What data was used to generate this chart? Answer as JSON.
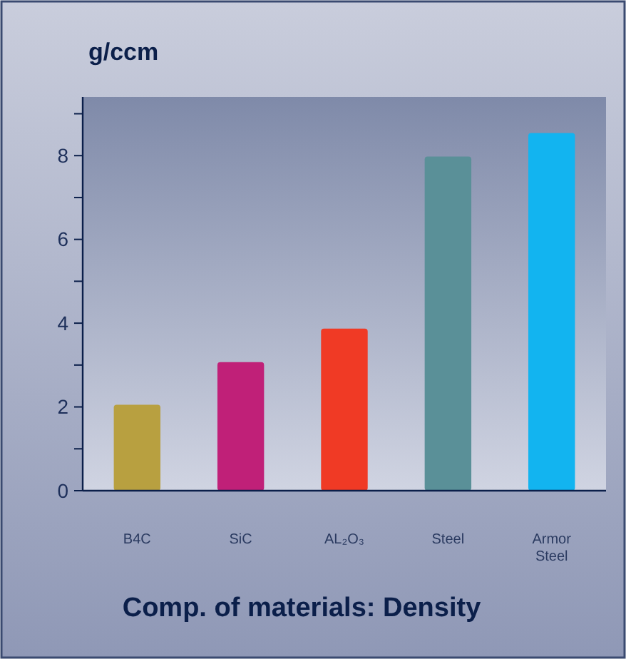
{
  "chart_data": {
    "type": "bar",
    "title": "Comp. of materials: Density",
    "ylabel": "g/ccm",
    "categories": [
      "B4C",
      "SiC",
      "AL₂O₃",
      "Steel",
      "Armor Steel"
    ],
    "values": [
      2.05,
      3.07,
      3.87,
      7.98,
      8.54
    ],
    "colors": [
      "#b8a040",
      "#c02078",
      "#f03a25",
      "#5a9098",
      "#12b4f0"
    ],
    "ylim": [
      0,
      9.4
    ],
    "yticks": [
      0,
      {
        "value": 1,
        "label": null
      },
      2,
      {
        "value": 3,
        "label": null
      },
      4,
      {
        "value": 5,
        "label": null
      },
      6,
      {
        "value": 7,
        "label": null
      },
      8,
      {
        "value": 9,
        "label": null
      }
    ],
    "grid": false
  }
}
